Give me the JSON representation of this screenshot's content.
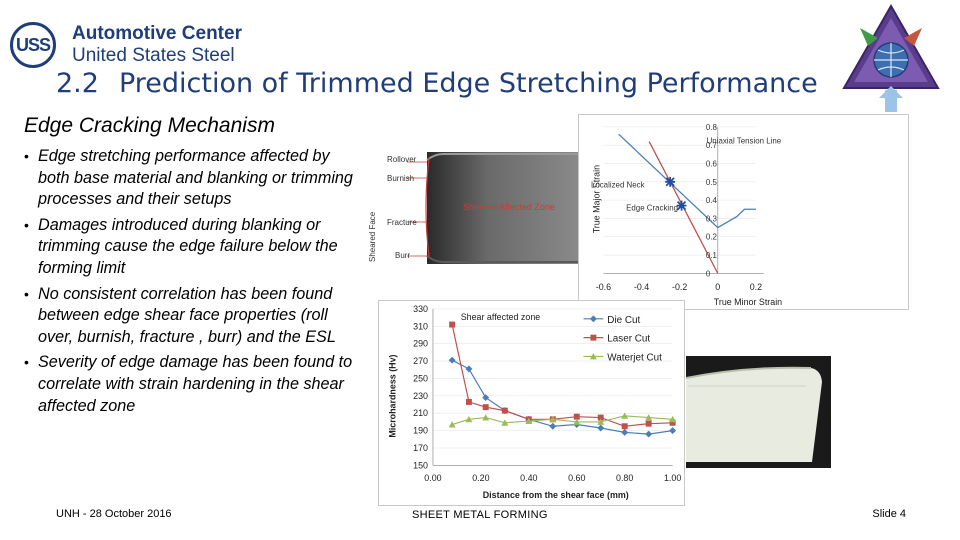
{
  "logo": {
    "mark": "USS",
    "line1": "Automotive Center",
    "line2": "United States Steel"
  },
  "title": {
    "number": "2.2",
    "text": "Prediction of Trimmed Edge Stretching Performance"
  },
  "subtitle": "Edge Cracking Mechanism",
  "bullets": [
    "Edge stretching performance affected by both base material and blanking or trimming processes and their setups",
    "Damages introduced during blanking or trimming cause the edge failure below the forming limit",
    "No consistent correlation has been found between edge shear face properties (roll over, burnish, fracture , burr) and the ESL",
    "Severity of edge damage has been found to correlate with strain hardening in the shear affected zone"
  ],
  "edge_photo": {
    "labels": {
      "rollover": "Rollover",
      "burnish": "Burnish",
      "fracture": "Fracture",
      "burr": "Burr",
      "sheared_face": "Sheared Face",
      "zone": "Sheared Affected Zone"
    }
  },
  "footer": {
    "left": "UNH - 28 October 2016",
    "middle": "SHEET METAL FORMING",
    "right": "Slide 4"
  },
  "colors": {
    "title": "#1f3d7a",
    "series_blue": "#4a7ebb",
    "series_red": "#c0504d",
    "series_green": "#9bbb59"
  },
  "chart_data": [
    {
      "type": "line",
      "xlabel": "True Minor Strain",
      "ylabel": "True Major Strain",
      "xlim": [
        -0.6,
        0.2
      ],
      "ylim": [
        0,
        0.8
      ],
      "xticks": [
        "-0.6",
        "-0.4",
        "-0.2",
        "0",
        "0.2"
      ],
      "yticks": [
        "0",
        "0.1",
        "0.2",
        "0.3",
        "0.4",
        "0.5",
        "0.6",
        "0.7",
        "0.8"
      ],
      "series": [
        {
          "name": "Uniaxial Tension Line",
          "color": "#c0504d",
          "x": [
            -0.36,
            0.0
          ],
          "y": [
            0.72,
            0.0
          ]
        },
        {
          "x": [
            -0.52,
            0.0,
            0.1,
            0.14,
            0.2
          ],
          "y": [
            0.76,
            0.25,
            0.31,
            0.35,
            0.35
          ],
          "color": "#4a7ebb"
        }
      ],
      "points": [
        {
          "label": "Localized Neck",
          "x": -0.25,
          "y": 0.5
        },
        {
          "label": "Edge Cracking",
          "x": -0.19,
          "y": 0.37
        }
      ]
    },
    {
      "type": "line",
      "xlabel": "Distance from the shear face (mm)",
      "ylabel": "Microhardness (Hv)",
      "annotation": "Shear affected zone",
      "xlim": [
        0,
        1
      ],
      "ylim": [
        150,
        330
      ],
      "xticks": [
        "0.00",
        "0.20",
        "0.40",
        "0.60",
        "0.80",
        "1.00"
      ],
      "yticks": [
        "150",
        "170",
        "190",
        "210",
        "230",
        "250",
        "270",
        "290",
        "310",
        "330"
      ],
      "series": [
        {
          "name": "Die Cut",
          "color": "#4a7ebb",
          "marker": "diamond",
          "x": [
            0.08,
            0.15,
            0.22,
            0.3,
            0.4,
            0.5,
            0.6,
            0.7,
            0.8,
            0.9,
            1.0
          ],
          "y": [
            271,
            261,
            228,
            213,
            203,
            195,
            197,
            193,
            188,
            186,
            190
          ]
        },
        {
          "name": "Laser Cut",
          "color": "#c0504d",
          "marker": "square",
          "x": [
            0.08,
            0.15,
            0.22,
            0.3,
            0.4,
            0.5,
            0.6,
            0.7,
            0.8,
            0.9,
            1.0
          ],
          "y": [
            312,
            223,
            217,
            213,
            203,
            203,
            206,
            205,
            195,
            198,
            199
          ]
        },
        {
          "name": "Waterjet Cut",
          "color": "#9bbb59",
          "marker": "triangle",
          "x": [
            0.08,
            0.15,
            0.22,
            0.3,
            0.4,
            0.5,
            0.6,
            0.7,
            0.8,
            0.9,
            1.0
          ],
          "y": [
            197,
            203,
            205,
            199,
            201,
            203,
            200,
            200,
            207,
            205,
            203
          ]
        }
      ]
    }
  ]
}
